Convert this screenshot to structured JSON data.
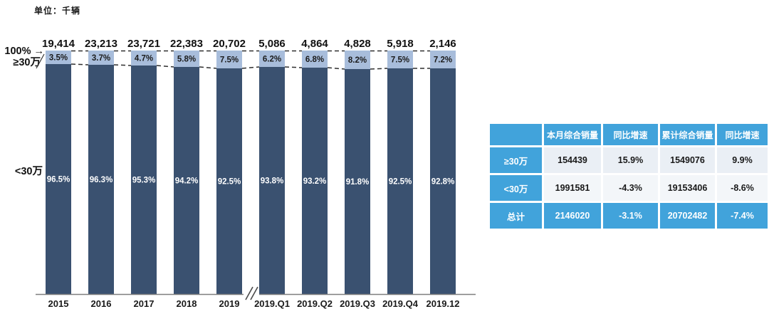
{
  "unit_label": "单位：千辆",
  "chart": {
    "hundred_percent_label": "100% →",
    "top_series_label": "≥30万",
    "bottom_series_label": "<30万"
  },
  "chart_data": {
    "type": "bar",
    "stacked": true,
    "unit": "千辆",
    "ylim": [
      0,
      100
    ],
    "grid": false,
    "legend_position": "left-of-bars",
    "axis_break_after": "2019",
    "categories": [
      "2015",
      "2016",
      "2017",
      "2018",
      "2019",
      "2019.Q1",
      "2019.Q2",
      "2019.Q3",
      "2019.Q4",
      "2019.12"
    ],
    "totals_display": [
      "19,414",
      "23,213",
      "23,721",
      "22,383",
      "20,702",
      "5,086",
      "4,864",
      "4,828",
      "5,918",
      "2,146"
    ],
    "series": [
      {
        "name": "≥30万",
        "values_pct": [
          3.5,
          3.7,
          4.7,
          5.8,
          7.5,
          6.2,
          6.8,
          8.2,
          7.5,
          7.2
        ],
        "labels": [
          "3.5%",
          "3.7%",
          "4.7%",
          "5.8%",
          "7.5%",
          "6.2%",
          "6.8%",
          "8.2%",
          "7.5%",
          "7.2%"
        ]
      },
      {
        "name": "<30万",
        "values_pct": [
          96.5,
          96.3,
          95.3,
          94.2,
          92.5,
          93.8,
          93.2,
          91.8,
          92.5,
          92.8
        ],
        "labels": [
          "96.5%",
          "96.3%",
          "95.3%",
          "94.2%",
          "92.5%",
          "93.8%",
          "93.2%",
          "91.8%",
          "92.5%",
          "92.8%"
        ]
      }
    ]
  },
  "table": {
    "header": [
      "",
      "本月综合销量",
      "同比增速",
      "累计综合销量",
      "同比增速"
    ],
    "rows": [
      {
        "label": "≥30万",
        "values": [
          "154439",
          "15.9%",
          "1549076",
          "9.9%"
        ],
        "highlight": false
      },
      {
        "label": "<30万",
        "values": [
          "1991581",
          "-4.3%",
          "19153406",
          "-8.6%"
        ],
        "highlight": false
      },
      {
        "label": "总计",
        "values": [
          "2146020",
          "-3.1%",
          "20702482",
          "-7.4%"
        ],
        "highlight": true
      }
    ]
  },
  "colors": {
    "bar_dark": "#3A5170",
    "bar_light": "#A8BDDB",
    "table_blue": "#41A3DB",
    "row_bg": "#EAEFF5",
    "row_bg_alt": "#F3F6F9",
    "dash_line": "#2F2F2F",
    "axis_line": "#7F7F7F",
    "label_dark": "#111111",
    "label_light": "#FFFFFF"
  }
}
